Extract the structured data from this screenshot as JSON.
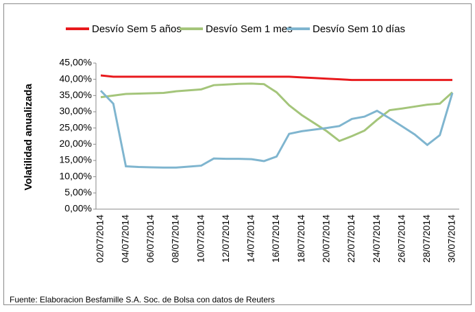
{
  "chart_data": {
    "type": "line",
    "y_label": "Volatilidad anualizada",
    "note": "Fuente: Elaboracion Besfamille S.A. Soc. de Bolsa con datos de Reuters",
    "categories": [
      "02/07/2014",
      null,
      "04/07/2014",
      null,
      "06/07/2014",
      null,
      "08/07/2014",
      null,
      "10/07/2014",
      null,
      "12/07/2014",
      null,
      "14/07/2014",
      null,
      "16/07/2014",
      null,
      "18/07/2014",
      null,
      "20/07/2014",
      null,
      "22/07/2014",
      null,
      "24/07/2014",
      null,
      "26/07/2014",
      null,
      "28/07/2014",
      null,
      "30/07/2014"
    ],
    "series": [
      {
        "name": "Desvío Sem 5 años",
        "color": "#e8191c",
        "values": [
          41.2,
          40.8,
          40.8,
          40.8,
          40.8,
          40.8,
          40.8,
          40.8,
          40.8,
          40.8,
          40.8,
          40.8,
          40.8,
          40.8,
          40.8,
          40.8,
          40.6,
          40.4,
          40.2,
          40.0,
          39.8,
          39.8,
          39.8,
          39.8,
          39.8,
          39.8,
          39.8,
          39.8,
          39.8
        ]
      },
      {
        "name": "Desvío Sem 1 mes",
        "color": "#a4c57a",
        "values": [
          34.5,
          35.0,
          35.5,
          35.6,
          35.7,
          35.8,
          36.3,
          36.6,
          36.9,
          38.2,
          38.4,
          38.6,
          38.7,
          38.5,
          36.0,
          32.0,
          29.0,
          26.5,
          24.0,
          21.0,
          22.5,
          24.2,
          27.5,
          30.5,
          31.0,
          31.6,
          32.2,
          32.5,
          36.0
        ]
      },
      {
        "name": "Desvío Sem 10 días",
        "color": "#7fb5cf",
        "values": [
          36.5,
          32.5,
          13.2,
          13.0,
          12.9,
          12.8,
          12.8,
          13.1,
          13.4,
          15.6,
          15.5,
          15.5,
          15.4,
          14.8,
          16.2,
          23.2,
          24.0,
          24.5,
          25.0,
          25.6,
          27.8,
          28.5,
          30.3,
          28.0,
          25.5,
          23.0,
          19.8,
          22.8,
          35.8
        ]
      }
    ],
    "ylim": [
      0,
      45
    ],
    "yticks": [
      {
        "value": 0,
        "label": "0,00%"
      },
      {
        "value": 5,
        "label": "5,00%"
      },
      {
        "value": 10,
        "label": "10,00%"
      },
      {
        "value": 15,
        "label": "15,00%"
      },
      {
        "value": 20,
        "label": "20,00%"
      },
      {
        "value": 25,
        "label": "25,00%"
      },
      {
        "value": 30,
        "label": "30,00%"
      },
      {
        "value": 35,
        "label": "35,00%"
      },
      {
        "value": 40,
        "label": "40,00%"
      },
      {
        "value": 45,
        "label": "45,00%"
      }
    ],
    "grid": false,
    "legend": "top"
  }
}
